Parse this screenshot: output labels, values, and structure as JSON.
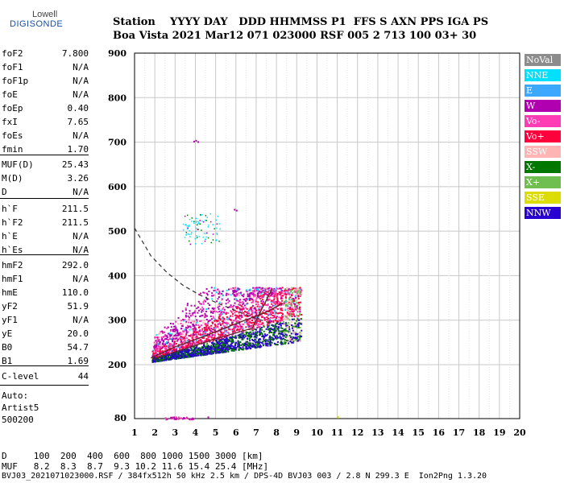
{
  "logo": {
    "brand": "Lowell",
    "product": "DIGISONDE"
  },
  "header": {
    "labels": "Station    YYYY DAY   DDD HHMMSS P1  FFS S AXN PPS IGA PS",
    "values": "Boa Vista 2021 Mar12 071 023000 RSF 005 2 713 100 03+ 30"
  },
  "params": [
    {
      "name": "foF2",
      "value": "7.800"
    },
    {
      "name": "foF1",
      "value": "N/A"
    },
    {
      "name": "foF1p",
      "value": "N/A"
    },
    {
      "name": "foE",
      "value": "N/A"
    },
    {
      "name": "foEp",
      "value": "0.40"
    },
    {
      "name": "fxI",
      "value": "7.65"
    },
    {
      "name": "foEs",
      "value": "N/A"
    },
    {
      "name": "fmin",
      "value": "1.70"
    },
    {
      "name": "MUF(D)",
      "value": "25.43"
    },
    {
      "name": "M(D)",
      "value": "3.26"
    },
    {
      "name": "D",
      "value": "N/A"
    },
    {
      "name": "h`F",
      "value": "211.5"
    },
    {
      "name": "h`F2",
      "value": "211.5"
    },
    {
      "name": "h`E",
      "value": "N/A"
    },
    {
      "name": "h`Es",
      "value": "N/A"
    },
    {
      "name": "hmF2",
      "value": "292.0"
    },
    {
      "name": "hmF1",
      "value": "N/A"
    },
    {
      "name": "hmE",
      "value": "110.0"
    },
    {
      "name": "yF2",
      "value": "51.9"
    },
    {
      "name": "yF1",
      "value": "N/A"
    },
    {
      "name": "yE",
      "value": "20.0"
    },
    {
      "name": "B0",
      "value": "54.7"
    },
    {
      "name": "B1",
      "value": "1.69"
    },
    {
      "name": "C-level",
      "value": "44"
    }
  ],
  "autoscale": {
    "title": "Auto:",
    "program": "Artist5",
    "version": "500200"
  },
  "legend": [
    {
      "label": "NoVal",
      "color": "#8c8c8c"
    },
    {
      "label": "NNE",
      "color": "#00e0ff"
    },
    {
      "label": "E",
      "color": "#3da8ff"
    },
    {
      "label": "W",
      "color": "#b000b0"
    },
    {
      "label": "Vo-",
      "color": "#ff3cb4"
    },
    {
      "label": "Vo+",
      "color": "#ff003c"
    },
    {
      "label": "SSW",
      "color": "#ffb4b4"
    },
    {
      "label": "X-",
      "color": "#007800"
    },
    {
      "label": "X+",
      "color": "#6ebe50"
    },
    {
      "label": "SSE",
      "color": "#dcdc00"
    },
    {
      "label": "NNW",
      "color": "#2800d2"
    }
  ],
  "chart_data": {
    "type": "scatter",
    "title": "",
    "xlabel": "",
    "ylabel": "",
    "xlim": [
      1,
      20
    ],
    "ylim": [
      80,
      900
    ],
    "xticks": [
      "1",
      "2",
      "3",
      "4",
      "5",
      "6",
      "7",
      "8",
      "9",
      "10",
      "11",
      "12",
      "13",
      "14",
      "15",
      "16",
      "17",
      "18",
      "19",
      "20"
    ],
    "yticks": [
      "80",
      "200",
      "300",
      "400",
      "500",
      "600",
      "700",
      "800",
      "900"
    ],
    "grid": true,
    "profile_curve": [
      [
        1.0,
        507
      ],
      [
        1.8,
        445
      ],
      [
        2.6,
        407
      ],
      [
        3.4,
        378
      ],
      [
        4.2,
        357
      ],
      [
        5.0,
        340
      ],
      [
        5.8,
        325
      ],
      [
        6.5,
        312
      ],
      [
        7.2,
        301
      ],
      [
        7.8,
        292
      ]
    ],
    "trace_lines": [
      {
        "points": [
          [
            1.8,
            215
          ],
          [
            3.0,
            240
          ],
          [
            4.5,
            265
          ],
          [
            6.0,
            292
          ],
          [
            7.5,
            318
          ],
          [
            8.3,
            338
          ]
        ]
      },
      {
        "points": [
          [
            1.9,
            212
          ],
          [
            3.5,
            236
          ],
          [
            5.0,
            258
          ],
          [
            6.8,
            282
          ],
          [
            7.8,
            372
          ]
        ]
      }
    ],
    "echo_clusters": [
      {
        "region": "main F trace",
        "xrange": [
          1.8,
          9.3
        ],
        "yrange": [
          210,
          370
        ]
      },
      {
        "region": "sporadic cluster",
        "xrange": [
          3.3,
          5.2
        ],
        "yrange": [
          470,
          540
        ]
      }
    ]
  },
  "footer": {
    "d_row": "D     100  200  400  600  800 1000 1500 3000 [km]",
    "muf_row": "MUF   8.2  8.3  8.7  9.3 10.2 11.6 15.4 25.4 [MHz]",
    "file_row": "BVJ03_2021071023000.RSF / 384fx512h 50 kHz 2.5 km / DPS-4D BVJ03 003 / 2.8 N 299.3 E  Ion2Png 1.3.20"
  }
}
